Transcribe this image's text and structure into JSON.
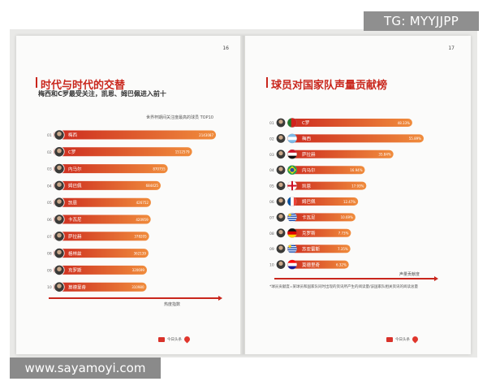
{
  "watermarks": {
    "tg": "TG: MYYJJPP",
    "url": "www.sayamoyi.com"
  },
  "left_page": {
    "page_number": "16",
    "title": "时代与时代的交替",
    "subtitle": "梅西和C罗最受关注，凯恩、姆巴佩进入前十",
    "caption": "世界杯期间关注度最高的球员 TOP10",
    "axis_label": "热度指数",
    "logo_text": "今日头条"
  },
  "right_page": {
    "page_number": "17",
    "title": "球员对国家队声量贡献榜",
    "axis_label": "声量贡献度",
    "footnote": "*球员贡献度=某球员和国家队同时出现的资讯所产生的阅读量/该国家队相关资讯的阅读总量",
    "logo_text": "今日头条"
  },
  "colors": {
    "bar_start": "#f08c3c",
    "bar_end": "#cc2a1f",
    "accent": "#c9261c"
  },
  "chart_data": [
    {
      "type": "bar",
      "orientation": "horizontal",
      "title": "世界杯期间关注度最高的球员 TOP10",
      "xlabel": "热度指数",
      "ranks": [
        "01",
        "02",
        "03",
        "04",
        "05",
        "06",
        "07",
        "08",
        "09",
        "10"
      ],
      "categories": [
        "梅西",
        "C罗",
        "内马尔",
        "姆巴佩",
        "凯恩",
        "卡瓦尼",
        "萨拉赫",
        "格林兹",
        "克罗斯",
        "莫德里奇"
      ],
      "value_labels": [
        "2143087",
        "1512579",
        "870755",
        "684425",
        "426752",
        "420959",
        "378205",
        "362139",
        "320699",
        "310980"
      ],
      "values": [
        2143087,
        1512579,
        870755,
        684425,
        426752,
        420959,
        378205,
        362139,
        320699,
        310980
      ]
    },
    {
      "type": "bar",
      "orientation": "horizontal",
      "title": "球员对国家队声量贡献榜",
      "xlabel": "声量贡献度",
      "ranks": [
        "01",
        "02",
        "03",
        "04",
        "05",
        "06",
        "07",
        "08",
        "09",
        "10"
      ],
      "categories": [
        "C罗",
        "梅西",
        "萨拉赫",
        "内马尔",
        "凯恩",
        "姆巴佩",
        "卡瓦尼",
        "克罗斯",
        "苏亚雷斯",
        "莫德里奇"
      ],
      "value_labels": [
        "48.33%",
        "55.89%",
        "35.84%",
        "16.94%",
        "17.93%",
        "12.47%",
        "10.69%",
        "7.73%",
        "7.35%",
        "6.32%"
      ],
      "values": [
        48.33,
        55.89,
        35.84,
        16.94,
        17.93,
        12.47,
        10.69,
        7.73,
        7.35,
        6.32
      ],
      "flags": [
        "portugal",
        "argentina",
        "egypt",
        "brazil",
        "england",
        "france",
        "uruguay",
        "germany",
        "uruguay",
        "croatia"
      ]
    }
  ]
}
